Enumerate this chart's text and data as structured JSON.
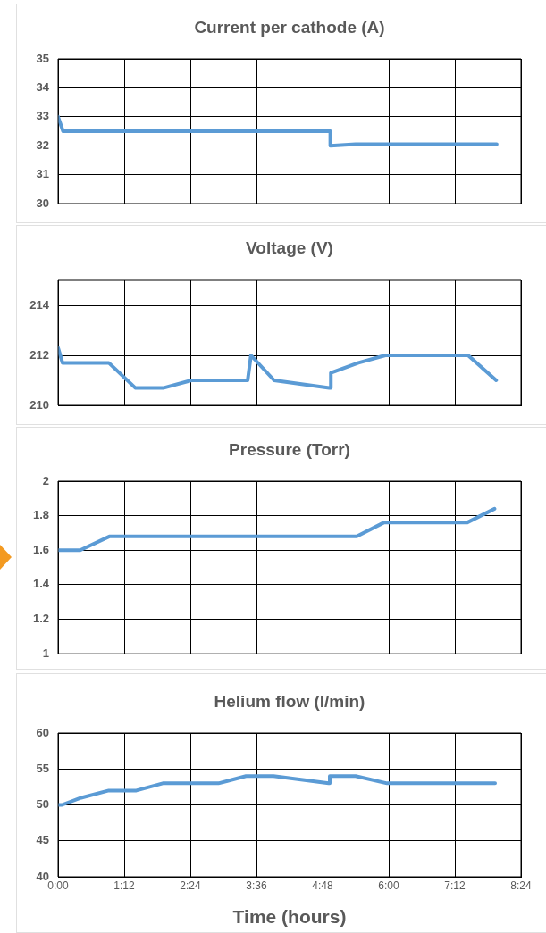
{
  "chart_data": [
    {
      "type": "line",
      "title": "Current per cathode (A)",
      "tick_labels": "y",
      "grid": true,
      "marker": "none",
      "xlim": [
        0,
        8.4
      ],
      "xticks": [
        {
          "value": 0,
          "label": null
        },
        {
          "value": 1.2,
          "label": null
        },
        {
          "value": 2.4,
          "label": null
        },
        {
          "value": 3.6,
          "label": null
        },
        {
          "value": 4.8,
          "label": null
        },
        {
          "value": 6,
          "label": null
        },
        {
          "value": 7.2,
          "label": null
        },
        {
          "value": 8.4,
          "label": null
        }
      ],
      "ylim": [
        30,
        35
      ],
      "yticks": [
        30,
        31,
        32,
        33,
        34,
        35
      ],
      "series": [
        {
          "color": "#5b9bd5",
          "x": [
            0,
            0.09,
            4.94,
            4.94,
            5.4,
            7.96
          ],
          "values": [
            33,
            32.5,
            32.5,
            32,
            32.05,
            32.05
          ]
        }
      ]
    },
    {
      "type": "line",
      "title": "Voltage (V)",
      "tick_labels": "y",
      "grid": true,
      "marker": "none",
      "xlim": [
        0,
        8.4
      ],
      "xticks": [
        {
          "value": 0,
          "label": null
        },
        {
          "value": 1.2,
          "label": null
        },
        {
          "value": 2.4,
          "label": null
        },
        {
          "value": 3.6,
          "label": null
        },
        {
          "value": 4.8,
          "label": null
        },
        {
          "value": 6,
          "label": null
        },
        {
          "value": 7.2,
          "label": null
        },
        {
          "value": 8.4,
          "label": null
        }
      ],
      "ylim": [
        210,
        215
      ],
      "yticks": [
        210,
        212,
        214
      ],
      "series": [
        {
          "color": "#5b9bd5",
          "x": [
            0,
            0.08,
            0.92,
            1.4,
            1.92,
            2.42,
            3.44,
            3.5,
            3.92,
            4.92,
            4.95,
            4.95,
            5.45,
            5.94,
            7.44,
            7.95
          ],
          "values": [
            212.3,
            211.7,
            211.7,
            210.7,
            210.7,
            211,
            211,
            212,
            211,
            210.7,
            210.7,
            211.3,
            211.7,
            212,
            212,
            211
          ]
        }
      ]
    },
    {
      "type": "line",
      "title": "Pressure (Torr)",
      "tick_labels": "y",
      "grid": true,
      "marker": "none",
      "xlim": [
        0,
        8.4
      ],
      "xticks": [
        {
          "value": 0,
          "label": null
        },
        {
          "value": 1.2,
          "label": null
        },
        {
          "value": 2.4,
          "label": null
        },
        {
          "value": 3.6,
          "label": null
        },
        {
          "value": 4.8,
          "label": null
        },
        {
          "value": 6,
          "label": null
        },
        {
          "value": 7.2,
          "label": null
        },
        {
          "value": 8.4,
          "label": null
        }
      ],
      "ylim": [
        1,
        2
      ],
      "yticks": [
        1,
        1.2,
        1.4,
        1.6,
        1.8,
        2
      ],
      "series": [
        {
          "color": "#5b9bd5",
          "x": [
            0,
            0.4,
            0.93,
            5.42,
            5.91,
            7.42,
            7.92
          ],
          "values": [
            1.6,
            1.6,
            1.68,
            1.68,
            1.76,
            1.76,
            1.84
          ]
        }
      ]
    },
    {
      "type": "line",
      "title": "Helium flow (l/min)",
      "xlabel": "Time (hours)",
      "grid": true,
      "marker": "none",
      "xlim": [
        0,
        8.4
      ],
      "xticks": [
        {
          "value": 0,
          "label": "0:00"
        },
        {
          "value": 1.2,
          "label": "1:12"
        },
        {
          "value": 2.4,
          "label": "2:24"
        },
        {
          "value": 3.6,
          "label": "3:36"
        },
        {
          "value": 4.8,
          "label": "4:48"
        },
        {
          "value": 6,
          "label": "6:00"
        },
        {
          "value": 7.2,
          "label": "7:12"
        },
        {
          "value": 8.4,
          "label": "8:24"
        }
      ],
      "ylim": [
        40,
        60
      ],
      "yticks": [
        40,
        45,
        50,
        55,
        60
      ],
      "series": [
        {
          "color": "#5b9bd5",
          "x": [
            0,
            0.07,
            0.42,
            0.92,
            1.42,
            1.9,
            2.91,
            3.41,
            3.91,
            4.91,
            4.93,
            4.93,
            5.4,
            5.97,
            7.93
          ],
          "values": [
            50,
            50,
            51,
            52,
            52,
            53,
            53,
            54,
            54,
            53,
            53,
            54,
            54,
            53,
            53
          ]
        }
      ]
    }
  ]
}
